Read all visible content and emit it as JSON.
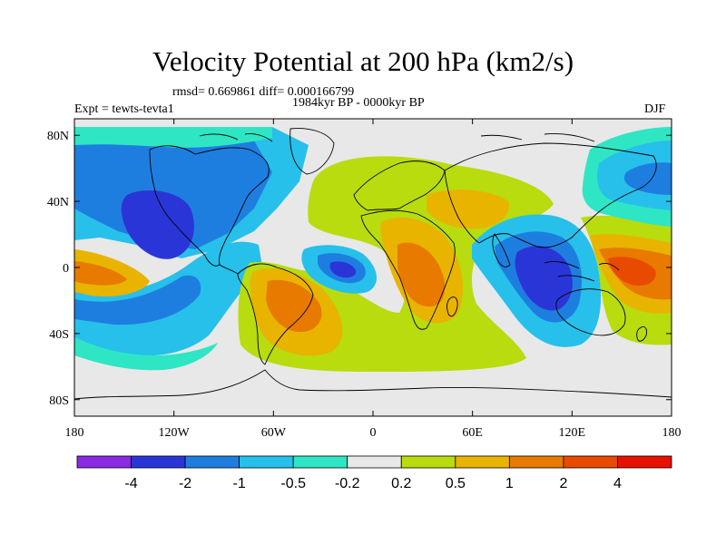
{
  "chart_data": {
    "type": "heatmap",
    "title": "Velocity Potential at 200 hPa (km2/s)",
    "stats_text": "rmsd= 0.669861 diff= 0.000166799",
    "period_text": "1984kyr BP - 0000kyr BP",
    "left_label": "Expt = tewts-tevta1",
    "right_label": "DJF",
    "x_ticks": [
      {
        "lon": -180,
        "label": "180"
      },
      {
        "lon": -120,
        "label": "120W"
      },
      {
        "lon": -60,
        "label": "60W"
      },
      {
        "lon": 0,
        "label": "0"
      },
      {
        "lon": 60,
        "label": "60E"
      },
      {
        "lon": 120,
        "label": "120E"
      },
      {
        "lon": 180,
        "label": "180"
      }
    ],
    "y_ticks": [
      {
        "lat": 80,
        "label": "80N"
      },
      {
        "lat": 40,
        "label": "40N"
      },
      {
        "lat": 0,
        "label": "0"
      },
      {
        "lat": -40,
        "label": "40S"
      },
      {
        "lat": -80,
        "label": "80S"
      }
    ],
    "xlim": [
      -180,
      180
    ],
    "ylim": [
      -90,
      90
    ],
    "colorbar": {
      "labels": [
        "-4",
        "-2",
        "-1",
        "-0.5",
        "-0.2",
        "0.2",
        "0.5",
        "1",
        "2",
        "4"
      ],
      "colors": [
        "#8a2be2",
        "#2a35d8",
        "#1e7ee0",
        "#27c0ea",
        "#2ee6c4",
        "#e8e8e8",
        "#b8dc0e",
        "#e8b400",
        "#e87a00",
        "#e84a00",
        "#e81000"
      ]
    },
    "background_color": "#e8e8e8",
    "cells": [
      {
        "lon": -165,
        "lat": 75,
        "level": 3
      },
      {
        "lon": -145,
        "lat": 65,
        "level": 2
      },
      {
        "lon": -125,
        "lat": 45,
        "level": 1
      },
      {
        "lon": -120,
        "lat": 30,
        "level": 1
      },
      {
        "lon": -100,
        "lat": 10,
        "level": 2
      },
      {
        "lon": -160,
        "lat": -5,
        "level": 8
      },
      {
        "lon": -140,
        "lat": -25,
        "level": 3
      },
      {
        "lon": -50,
        "lat": -20,
        "level": 8
      },
      {
        "lon": -45,
        "lat": -35,
        "level": 7
      },
      {
        "lon": -15,
        "lat": 0,
        "level": 1
      },
      {
        "lon": -10,
        "lat": 5,
        "level": 2
      },
      {
        "lon": 10,
        "lat": 40,
        "level": 6
      },
      {
        "lon": 40,
        "lat": 35,
        "level": 7
      },
      {
        "lon": 30,
        "lat": -10,
        "level": 8
      },
      {
        "lon": 40,
        "lat": -30,
        "level": 7
      },
      {
        "lon": 100,
        "lat": -5,
        "level": 1
      },
      {
        "lon": 120,
        "lat": -15,
        "level": 1
      },
      {
        "lon": 155,
        "lat": -5,
        "level": 9
      },
      {
        "lon": 165,
        "lat": 60,
        "level": 3
      },
      {
        "lon": 170,
        "lat": 45,
        "level": 2
      }
    ]
  }
}
